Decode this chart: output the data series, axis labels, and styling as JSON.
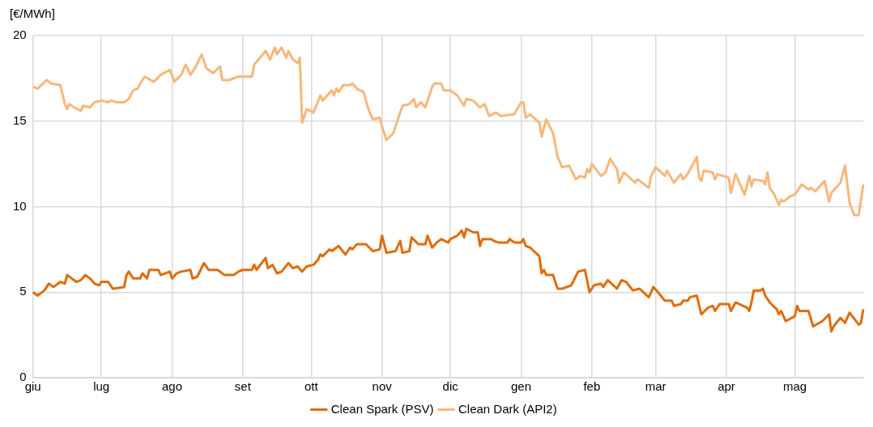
{
  "chart_data": {
    "type": "line",
    "ylabel": "[€/MWh]",
    "ylim": [
      0,
      20
    ],
    "yticks": [
      0,
      5,
      10,
      15,
      20
    ],
    "grid": true,
    "legend": "bottom",
    "categories": [
      "giu",
      null,
      null,
      null,
      null,
      null,
      null,
      null,
      null,
      null,
      null,
      null,
      null,
      null,
      null,
      null,
      null,
      null,
      null,
      null,
      null,
      null,
      null,
      null,
      null,
      null,
      null,
      null,
      null,
      null,
      "lug",
      null,
      null,
      null,
      null,
      null,
      null,
      null,
      null,
      null,
      null,
      null,
      null,
      null,
      null,
      null,
      null,
      null,
      null,
      null,
      null,
      null,
      null,
      null,
      null,
      null,
      null,
      null,
      null,
      null,
      null,
      "ago",
      null,
      null,
      null,
      null,
      null,
      null,
      null,
      null,
      null,
      null,
      null,
      null,
      null,
      null,
      null,
      null,
      null,
      null,
      null,
      null,
      null,
      null,
      null,
      null,
      null,
      null,
      null,
      null,
      null,
      null,
      "set",
      null,
      null,
      null,
      null,
      null,
      null,
      null,
      null,
      null,
      null,
      null,
      null,
      null,
      null,
      null,
      null,
      null,
      null,
      null,
      null,
      null,
      null,
      null,
      null,
      null,
      null,
      null,
      null,
      null,
      "ott",
      null,
      null,
      null,
      null,
      null,
      null,
      null,
      null,
      null,
      null,
      null,
      null,
      null,
      null,
      null,
      null,
      null,
      null,
      null,
      null,
      null,
      null,
      null,
      null,
      null,
      null,
      null,
      null,
      null,
      null,
      "nov",
      null,
      null,
      null,
      null,
      null,
      null,
      null,
      null,
      null,
      null,
      null,
      null,
      null,
      null,
      null,
      null,
      null,
      null,
      null,
      null,
      null,
      null,
      null,
      null,
      null,
      null,
      null,
      null,
      null,
      "dic",
      null,
      null,
      null,
      null,
      null,
      null,
      null,
      null,
      null,
      null,
      null,
      null,
      null,
      null,
      null,
      null,
      null,
      null,
      null,
      null,
      null,
      null,
      null,
      null,
      null,
      null,
      null,
      null,
      null,
      null,
      "gen",
      null,
      null,
      null,
      null,
      null,
      null,
      null,
      null,
      null,
      null,
      null,
      null,
      null,
      null,
      null,
      null,
      null,
      null,
      null,
      null,
      null,
      null,
      null,
      null,
      null,
      null,
      null,
      null,
      null,
      null,
      "feb",
      null,
      null,
      null,
      null,
      null,
      null,
      null,
      null,
      null,
      null,
      null,
      null,
      null,
      null,
      null,
      null,
      null,
      null,
      null,
      null,
      null,
      null,
      null,
      null,
      null,
      null,
      null,
      "mar",
      null,
      null,
      null,
      null,
      null,
      null,
      null,
      null,
      null,
      null,
      null,
      null,
      null,
      null,
      null,
      null,
      null,
      null,
      null,
      null,
      null,
      null,
      null,
      null,
      null,
      null,
      null,
      null,
      null,
      null,
      "apr",
      null,
      null,
      null,
      null,
      null,
      null,
      null,
      null,
      null,
      null,
      null,
      null,
      null,
      null,
      null,
      null,
      null,
      null,
      null,
      null,
      null,
      null,
      null,
      null,
      null,
      null,
      null,
      null,
      null,
      "mag",
      null,
      null,
      null,
      null,
      null,
      null,
      null,
      null,
      null,
      null,
      null,
      null,
      null,
      null,
      null,
      null,
      null,
      null,
      null,
      null,
      null,
      null,
      null,
      null,
      null,
      null,
      null,
      null,
      null,
      null
    ],
    "series": [
      {
        "name": "Clean Spark (PSV)",
        "color": "#e36c0a",
        "values": [
          5.0,
          null,
          4.8,
          null,
          null,
          5.1,
          null,
          5.5,
          null,
          5.3,
          null,
          null,
          5.6,
          null,
          5.5,
          6.0,
          null,
          null,
          null,
          5.6,
          null,
          5.7,
          null,
          6.0,
          null,
          5.8,
          null,
          5.5,
          null,
          5.4,
          5.6,
          null,
          null,
          5.6,
          null,
          5.2,
          null,
          null,
          null,
          null,
          5.3,
          6.0,
          6.2,
          null,
          5.8,
          null,
          null,
          5.8,
          6.1,
          null,
          5.8,
          6.3,
          null,
          null,
          null,
          6.3,
          6.0,
          null,
          null,
          null,
          6.2,
          5.8,
          null,
          6.1,
          null,
          6.2,
          null,
          null,
          null,
          6.3,
          5.8,
          null,
          5.9,
          null,
          null,
          6.7,
          null,
          6.3,
          null,
          null,
          null,
          6.3,
          null,
          null,
          6.0,
          null,
          null,
          null,
          6.0,
          null,
          6.2,
          null,
          6.3,
          null,
          null,
          null,
          6.3,
          6.6,
          6.3,
          null,
          null,
          null,
          7.0,
          6.4,
          null,
          6.6,
          null,
          6.1,
          null,
          6.2,
          null,
          null,
          6.7,
          null,
          6.4,
          null,
          6.5,
          null,
          6.2,
          null,
          6.5,
          null,
          null,
          6.6,
          null,
          6.9,
          7.2,
          7.1,
          null,
          null,
          7.5,
          7.4,
          null,
          7.6,
          7.7,
          null,
          null,
          7.2,
          null,
          7.6,
          7.5,
          null,
          7.8,
          null,
          null,
          null,
          7.8,
          null,
          null,
          7.4,
          null,
          null,
          7.5,
          8.3,
          null,
          7.3,
          null,
          null,
          null,
          7.4,
          null,
          8.0,
          7.3,
          null,
          null,
          7.4,
          8.2,
          null,
          null,
          7.8,
          null,
          null,
          7.8,
          8.3,
          null,
          7.6,
          null,
          7.9,
          null,
          8.1,
          null,
          null,
          7.9,
          8.1,
          null,
          null,
          8.3,
          null,
          8.6,
          8.2,
          8.7,
          null,
          null,
          8.5,
          null,
          8.5,
          7.7,
          8.1,
          null,
          null,
          null,
          8.1,
          8.0,
          null,
          7.9,
          null,
          null,
          null,
          7.9,
          8.1,
          null,
          7.9,
          null,
          null,
          7.9,
          8.1,
          7.7,
          null,
          7.6,
          null,
          null,
          null,
          7.1,
          6.1,
          6.3,
          6.0,
          null,
          null,
          6.0,
          null,
          5.2,
          null,
          5.2,
          null,
          null,
          null,
          5.4,
          null,
          null,
          6.2,
          null,
          null,
          6.3,
          null,
          5.0,
          null,
          5.4,
          null,
          null,
          5.5,
          5.3,
          null,
          5.7,
          null,
          null,
          null,
          5.2,
          null,
          5.7,
          null,
          5.6,
          null,
          null,
          5.1,
          null,
          null,
          5.2,
          null,
          null,
          null,
          4.7,
          null,
          5.3,
          null,
          5.0,
          null,
          null,
          4.5,
          null,
          null,
          4.5,
          4.2,
          null,
          null,
          4.3,
          4.5,
          null,
          4.5,
          4.7,
          null,
          null,
          4.8,
          null,
          3.7,
          null,
          null,
          4.1,
          null,
          4.2,
          3.9,
          null,
          4.3,
          null,
          null,
          null,
          4.3,
          3.9,
          null,
          4.4,
          null,
          null,
          null,
          null,
          4.1,
          3.9,
          4.4,
          5.1,
          null,
          null,
          5.1,
          5.2,
          4.8,
          null,
          4.4,
          null,
          null,
          4.0,
          3.7,
          3.9,
          null,
          3.3,
          null,
          null,
          null,
          3.6,
          4.2,
          3.9,
          null,
          null,
          null,
          3.9,
          null,
          3.0,
          null,
          null,
          null,
          3.3,
          null,
          null,
          3.7,
          2.7,
          3.0,
          null,
          null,
          3.5,
          null,
          3.2,
          null,
          3.8,
          null,
          null,
          null,
          3.1,
          3.2,
          4.0
        ]
      },
      {
        "name": "Clean Dark (API2)",
        "color": "#f9b77a",
        "values": [
          17.0,
          null,
          16.9,
          null,
          null,
          null,
          17.4,
          null,
          17.2,
          null,
          null,
          null,
          17.1,
          null,
          16.0,
          15.7,
          16.0,
          null,
          15.8,
          null,
          null,
          15.6,
          15.9,
          null,
          null,
          15.8,
          null,
          16.1,
          null,
          null,
          16.2,
          null,
          null,
          16.1,
          16.2,
          null,
          null,
          16.1,
          null,
          null,
          16.1,
          null,
          16.3,
          null,
          16.8,
          null,
          16.9,
          17.2,
          null,
          17.6,
          null,
          null,
          null,
          17.3,
          null,
          null,
          17.7,
          null,
          null,
          null,
          18.0,
          null,
          17.3,
          null,
          null,
          17.7,
          null,
          18.3,
          null,
          17.7,
          null,
          18.1,
          null,
          null,
          18.9,
          null,
          18.1,
          null,
          null,
          17.8,
          null,
          null,
          18.2,
          17.4,
          null,
          null,
          17.4,
          null,
          null,
          null,
          17.6,
          null,
          null,
          17.6,
          null,
          null,
          17.6,
          18.3,
          null,
          null,
          null,
          null,
          19.1,
          null,
          18.6,
          null,
          19.3,
          18.9,
          null,
          19.3,
          null,
          18.7,
          19.1,
          null,
          18.6,
          null,
          18.4,
          18.7,
          14.9,
          null,
          15.7,
          null,
          null,
          15.5,
          null,
          null,
          16.5,
          16.2,
          null,
          null,
          null,
          16.8,
          16.5,
          16.9,
          16.7,
          null,
          17.1,
          null,
          null,
          17.1,
          17.2,
          null,
          16.9,
          null,
          null,
          16.7,
          null,
          15.7,
          null,
          15.1,
          null,
          null,
          15.2,
          14.7,
          null,
          13.9,
          null,
          null,
          14.3,
          null,
          15.1,
          null,
          15.9,
          null,
          null,
          16.0,
          null,
          16.3,
          15.8,
          null,
          16.1,
          null,
          15.8,
          null,
          null,
          17.0,
          17.2,
          null,
          null,
          17.2,
          16.8,
          null,
          null,
          16.8,
          null,
          null,
          16.5,
          null,
          null,
          15.9,
          16.3,
          null,
          null,
          16.2,
          null,
          null,
          15.8,
          null,
          16.0,
          null,
          15.3,
          null,
          null,
          15.5,
          null,
          15.3,
          null,
          null,
          null,
          null,
          null,
          15.4,
          null,
          null,
          16.1,
          16.1,
          15.2,
          null,
          15.4,
          null,
          null,
          null,
          14.9,
          14.1,
          null,
          15.1,
          null,
          null,
          14.3,
          null,
          12.9,
          null,
          12.3,
          null,
          null,
          12.4,
          null,
          null,
          11.6,
          null,
          11.8,
          null,
          11.7,
          12.2,
          12.0,
          12.5,
          null,
          null,
          null,
          11.8,
          null,
          12.0,
          null,
          12.8,
          null,
          null,
          12.2,
          11.4,
          null,
          12.0,
          null,
          null,
          null,
          null,
          11.4,
          11.6,
          null,
          null,
          null,
          null,
          11.1,
          11.8,
          null,
          12.3,
          null,
          null,
          null,
          11.8,
          12.1,
          null,
          null,
          11.4,
          null,
          null,
          11.9,
          11.6,
          null,
          11.9,
          null,
          null,
          null,
          12.9,
          11.7,
          11.5,
          12.1,
          null,
          null,
          null,
          12.0,
          11.6,
          11.9,
          null,
          null,
          null,
          null,
          11.7,
          10.8,
          null,
          11.9,
          null,
          null,
          null,
          10.7,
          null,
          11.8,
          11.2,
          11.6,
          null,
          null,
          null,
          11.5,
          11.3,
          12.0,
          11.1,
          null,
          10.7,
          null,
          10.1,
          10.4,
          10.3,
          null,
          null,
          10.6,
          null,
          10.7,
          null,
          null,
          11.3,
          null,
          null,
          11.0,
          11.1,
          null,
          10.9,
          null,
          null,
          null,
          11.5,
          null,
          10.3,
          10.8,
          null,
          null,
          null,
          11.4,
          null,
          12.4,
          null,
          10.2,
          null,
          9.5,
          null,
          9.5,
          null,
          11.3
        ]
      }
    ]
  }
}
